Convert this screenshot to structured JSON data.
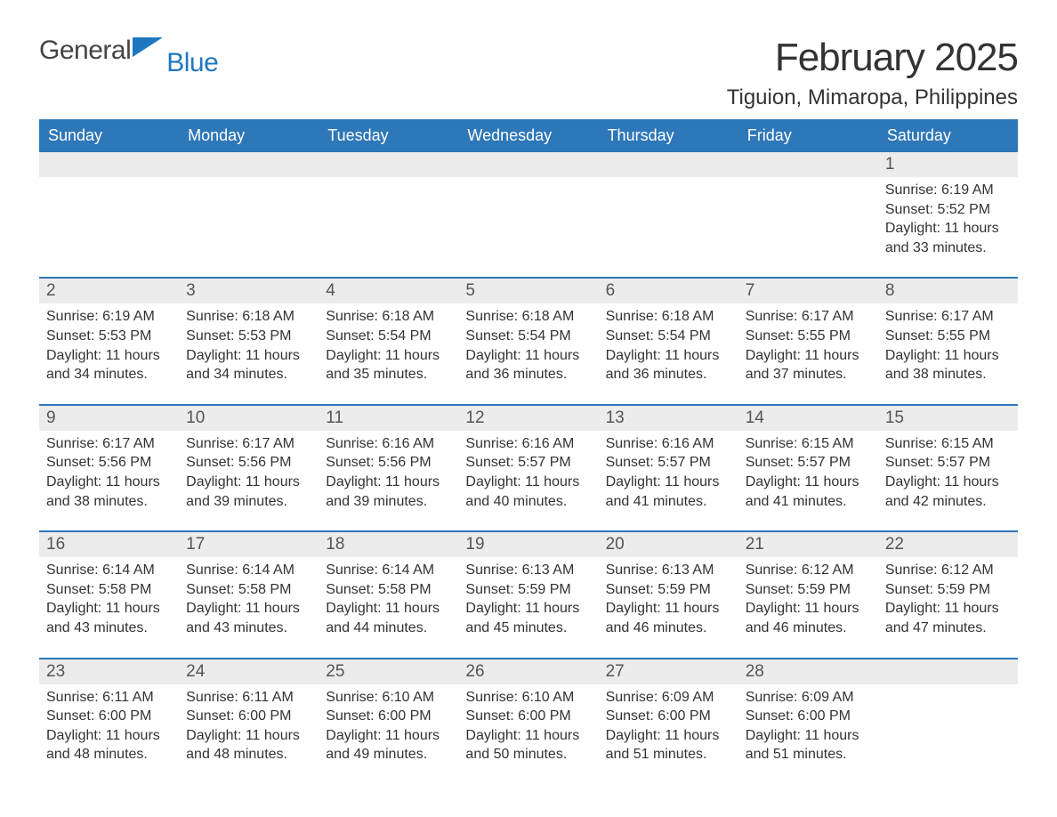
{
  "brand": {
    "part1": "General",
    "part2": "Blue"
  },
  "title": "February 2025",
  "location": "Tiguion, Mimaropa, Philippines",
  "header_bg": "#2e77b8",
  "days_of_week": [
    "Sunday",
    "Monday",
    "Tuesday",
    "Wednesday",
    "Thursday",
    "Friday",
    "Saturday"
  ],
  "first_day_index": 6,
  "days": [
    {
      "n": 1,
      "sunrise": "6:19 AM",
      "sunset": "5:52 PM",
      "daylight": "11 hours and 33 minutes."
    },
    {
      "n": 2,
      "sunrise": "6:19 AM",
      "sunset": "5:53 PM",
      "daylight": "11 hours and 34 minutes."
    },
    {
      "n": 3,
      "sunrise": "6:18 AM",
      "sunset": "5:53 PM",
      "daylight": "11 hours and 34 minutes."
    },
    {
      "n": 4,
      "sunrise": "6:18 AM",
      "sunset": "5:54 PM",
      "daylight": "11 hours and 35 minutes."
    },
    {
      "n": 5,
      "sunrise": "6:18 AM",
      "sunset": "5:54 PM",
      "daylight": "11 hours and 36 minutes."
    },
    {
      "n": 6,
      "sunrise": "6:18 AM",
      "sunset": "5:54 PM",
      "daylight": "11 hours and 36 minutes."
    },
    {
      "n": 7,
      "sunrise": "6:17 AM",
      "sunset": "5:55 PM",
      "daylight": "11 hours and 37 minutes."
    },
    {
      "n": 8,
      "sunrise": "6:17 AM",
      "sunset": "5:55 PM",
      "daylight": "11 hours and 38 minutes."
    },
    {
      "n": 9,
      "sunrise": "6:17 AM",
      "sunset": "5:56 PM",
      "daylight": "11 hours and 38 minutes."
    },
    {
      "n": 10,
      "sunrise": "6:17 AM",
      "sunset": "5:56 PM",
      "daylight": "11 hours and 39 minutes."
    },
    {
      "n": 11,
      "sunrise": "6:16 AM",
      "sunset": "5:56 PM",
      "daylight": "11 hours and 39 minutes."
    },
    {
      "n": 12,
      "sunrise": "6:16 AM",
      "sunset": "5:57 PM",
      "daylight": "11 hours and 40 minutes."
    },
    {
      "n": 13,
      "sunrise": "6:16 AM",
      "sunset": "5:57 PM",
      "daylight": "11 hours and 41 minutes."
    },
    {
      "n": 14,
      "sunrise": "6:15 AM",
      "sunset": "5:57 PM",
      "daylight": "11 hours and 41 minutes."
    },
    {
      "n": 15,
      "sunrise": "6:15 AM",
      "sunset": "5:57 PM",
      "daylight": "11 hours and 42 minutes."
    },
    {
      "n": 16,
      "sunrise": "6:14 AM",
      "sunset": "5:58 PM",
      "daylight": "11 hours and 43 minutes."
    },
    {
      "n": 17,
      "sunrise": "6:14 AM",
      "sunset": "5:58 PM",
      "daylight": "11 hours and 43 minutes."
    },
    {
      "n": 18,
      "sunrise": "6:14 AM",
      "sunset": "5:58 PM",
      "daylight": "11 hours and 44 minutes."
    },
    {
      "n": 19,
      "sunrise": "6:13 AM",
      "sunset": "5:59 PM",
      "daylight": "11 hours and 45 minutes."
    },
    {
      "n": 20,
      "sunrise": "6:13 AM",
      "sunset": "5:59 PM",
      "daylight": "11 hours and 46 minutes."
    },
    {
      "n": 21,
      "sunrise": "6:12 AM",
      "sunset": "5:59 PM",
      "daylight": "11 hours and 46 minutes."
    },
    {
      "n": 22,
      "sunrise": "6:12 AM",
      "sunset": "5:59 PM",
      "daylight": "11 hours and 47 minutes."
    },
    {
      "n": 23,
      "sunrise": "6:11 AM",
      "sunset": "6:00 PM",
      "daylight": "11 hours and 48 minutes."
    },
    {
      "n": 24,
      "sunrise": "6:11 AM",
      "sunset": "6:00 PM",
      "daylight": "11 hours and 48 minutes."
    },
    {
      "n": 25,
      "sunrise": "6:10 AM",
      "sunset": "6:00 PM",
      "daylight": "11 hours and 49 minutes."
    },
    {
      "n": 26,
      "sunrise": "6:10 AM",
      "sunset": "6:00 PM",
      "daylight": "11 hours and 50 minutes."
    },
    {
      "n": 27,
      "sunrise": "6:09 AM",
      "sunset": "6:00 PM",
      "daylight": "11 hours and 51 minutes."
    },
    {
      "n": 28,
      "sunrise": "6:09 AM",
      "sunset": "6:00 PM",
      "daylight": "11 hours and 51 minutes."
    }
  ],
  "labels": {
    "sunrise": "Sunrise: ",
    "sunset": "Sunset: ",
    "daylight": "Daylight: "
  }
}
